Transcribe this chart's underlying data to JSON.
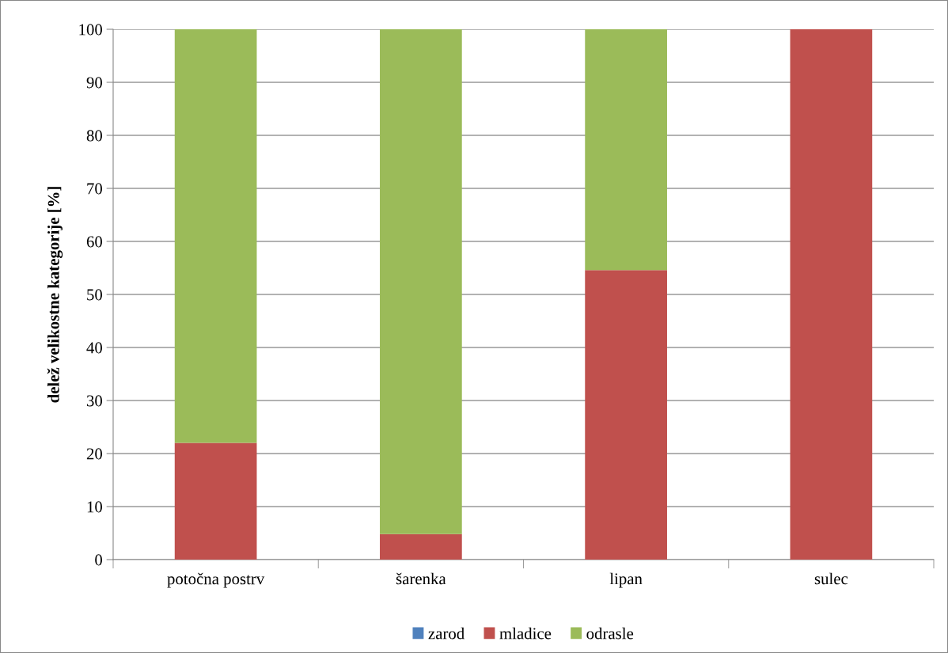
{
  "chart_data": {
    "type": "bar",
    "stacked": true,
    "ylabel": "delež velikostne kategorije [%]",
    "categories": [
      "potočna postrv",
      "šarenka",
      "lipan",
      "sulec"
    ],
    "series": [
      {
        "name": "zarod",
        "color": "#4f81bd",
        "values": [
          0,
          0,
          0,
          0
        ]
      },
      {
        "name": "mladice",
        "color": "#c0504d",
        "values": [
          22,
          4.8,
          54.6,
          100
        ]
      },
      {
        "name": "odrasle",
        "color": "#9bbb59",
        "values": [
          78,
          95.2,
          45.4,
          0
        ]
      }
    ],
    "ylim": [
      0,
      100
    ],
    "yticks": [
      0,
      10,
      20,
      30,
      40,
      50,
      60,
      70,
      80,
      90,
      100
    ],
    "grid": "y",
    "legend": "bottom"
  }
}
